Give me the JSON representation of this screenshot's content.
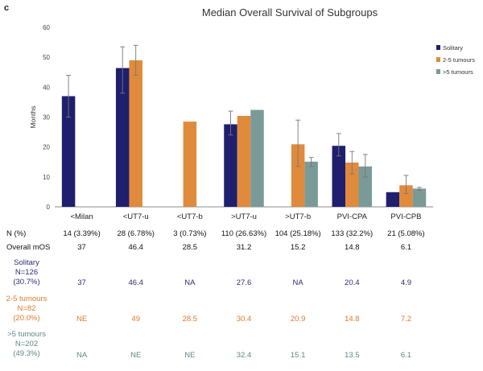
{
  "panel_label": "c",
  "chart_data": {
    "type": "bar",
    "title": "Median Overall Survival of Subgroups",
    "xlabel": "",
    "ylabel": "Months",
    "ylim": [
      0,
      60
    ],
    "yticks": [
      0,
      10,
      20,
      30,
      40,
      50,
      60
    ],
    "grid": false,
    "legend_position": "right",
    "categories": [
      "<Milan",
      "<UT7-u",
      "<UT7-b",
      ">UT7-u",
      ">UT7-b",
      "PVI-CPA",
      "PVI-CPB"
    ],
    "series": [
      {
        "name": "Solitary",
        "color": "#1f1f6e",
        "values": [
          37,
          46.4,
          null,
          27.6,
          null,
          20.4,
          4.9
        ],
        "err_low": [
          30,
          38,
          null,
          24,
          null,
          17,
          null
        ],
        "err_high": [
          44,
          53.5,
          null,
          32,
          null,
          24.5,
          null
        ]
      },
      {
        "name": "2-5 tumours",
        "color": "#e08a3c",
        "values": [
          null,
          49,
          28.5,
          30.4,
          20.9,
          14.8,
          7.2
        ],
        "err_low": [
          null,
          44,
          null,
          null,
          13.5,
          11,
          4.5
        ],
        "err_high": [
          null,
          54,
          null,
          null,
          29,
          18.5,
          10.5
        ]
      },
      {
        "name": ">5 tumours",
        "color": "#7a9a98",
        "values": [
          null,
          null,
          null,
          32.4,
          15.1,
          13.5,
          6.1
        ],
        "err_low": [
          null,
          null,
          null,
          null,
          13.5,
          10,
          5.5
        ],
        "err_high": [
          null,
          null,
          null,
          null,
          16.5,
          17.5,
          6.5
        ]
      }
    ]
  },
  "table": {
    "rows": [
      {
        "label": "N (%)",
        "values": [
          "14 (3.39%)",
          "28 (6.78%)",
          "3 (0.73%)",
          "110 (26.63%)",
          "104 (25.18%)",
          "133 (32.2%)",
          "21 (5.08%)"
        ]
      },
      {
        "label": "Overall mOS",
        "values": [
          "37",
          "46.4",
          "28.5",
          "31.2",
          "15.2",
          "14.8",
          "6.1"
        ]
      },
      {
        "label_lines": [
          "Solitary",
          "N=126",
          "(30.7%)"
        ],
        "color": "#2b2b78",
        "values": [
          "37",
          "46.4",
          "NA",
          "27.6",
          "NA",
          "20.4",
          "4.9"
        ]
      },
      {
        "label_lines": [
          "2-5 tumours",
          "N=82",
          "(20.0%)"
        ],
        "color": "#e07a2a",
        "values": [
          "NE",
          "49",
          "28.5",
          "30.4",
          "20.9",
          "14.8",
          "7.2"
        ]
      },
      {
        "label_lines": [
          ">5 tumours",
          "N=202",
          "(49.3%)"
        ],
        "color": "#5e8886",
        "values": [
          "NA",
          "NE",
          "NE",
          "32.4",
          "15.1",
          "13.5",
          "6.1"
        ]
      }
    ]
  }
}
